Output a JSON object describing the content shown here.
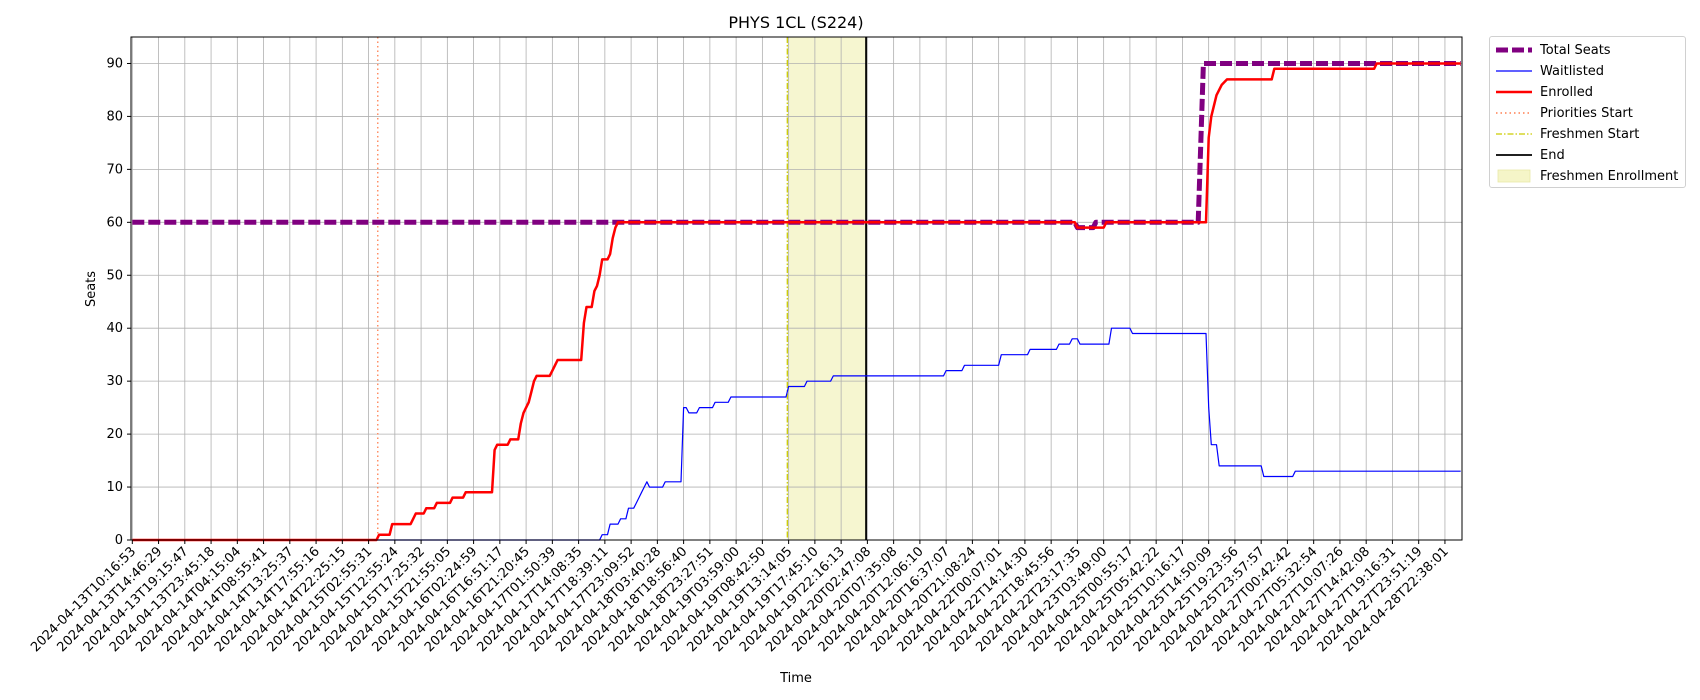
{
  "chart_data": {
    "type": "line",
    "title": "PHYS 1CL (S224)",
    "xlabel": "Time",
    "ylabel": "Seats",
    "ylim": [
      0,
      95
    ],
    "yticks": [
      0,
      10,
      20,
      30,
      40,
      50,
      60,
      70,
      80,
      90
    ],
    "grid": true,
    "legend_placement": "outside top-right",
    "x_ticks": [
      "2024-04-13T10:16:53",
      "2024-04-13T14:46:29",
      "2024-04-13T19:15:47",
      "2024-04-13T23:45:18",
      "2024-04-14T04:15:04",
      "2024-04-14T08:55:41",
      "2024-04-14T13:25:37",
      "2024-04-14T17:55:16",
      "2024-04-14T22:25:15",
      "2024-04-15T02:55:31",
      "2024-04-15T12:55:24",
      "2024-04-15T17:25:32",
      "2024-04-15T21:55:05",
      "2024-04-16T02:24:59",
      "2024-04-16T16:51:17",
      "2024-04-16T21:20:45",
      "2024-04-17T01:50:39",
      "2024-04-17T14:08:35",
      "2024-04-17T18:39:11",
      "2024-04-17T23:09:52",
      "2024-04-18T03:40:28",
      "2024-04-18T18:56:40",
      "2024-04-18T23:27:51",
      "2024-04-19T03:59:00",
      "2024-04-19T08:42:50",
      "2024-04-19T13:14:05",
      "2024-04-19T17:45:10",
      "2024-04-19T22:16:13",
      "2024-04-20T02:47:08",
      "2024-04-20T07:35:08",
      "2024-04-20T12:06:10",
      "2024-04-20T16:37:07",
      "2024-04-20T21:08:24",
      "2024-04-22T00:07:01",
      "2024-04-22T14:14:30",
      "2024-04-22T18:45:56",
      "2024-04-22T23:17:35",
      "2024-04-23T03:49:00",
      "2024-04-25T00:55:17",
      "2024-04-25T05:42:22",
      "2024-04-25T10:16:17",
      "2024-04-25T14:50:09",
      "2024-04-25T19:23:56",
      "2024-04-25T23:57:57",
      "2024-04-27T00:42:42",
      "2024-04-27T05:32:54",
      "2024-04-27T10:07:26",
      "2024-04-27T14:42:08",
      "2024-04-27T19:16:31",
      "2024-04-27T23:51:19",
      "2024-04-28T22:38:01"
    ],
    "x_range_ticks": [
      -0.05,
      50.65
    ],
    "series": [
      {
        "name": "Total Seats",
        "color": "#800080",
        "style": "dashed",
        "points": [
          [
            0,
            60
          ],
          [
            35.9,
            60
          ],
          [
            36.0,
            59
          ],
          [
            36.6,
            59
          ],
          [
            36.7,
            60
          ],
          [
            40.6,
            60
          ],
          [
            40.8,
            90
          ],
          [
            50.6,
            90
          ]
        ]
      },
      {
        "name": "Waitlisted",
        "color": "#0000ff",
        "style": "solid",
        "points": [
          [
            0,
            0
          ],
          [
            17.8,
            0
          ],
          [
            17.9,
            1
          ],
          [
            18.1,
            1
          ],
          [
            18.2,
            3
          ],
          [
            18.5,
            3
          ],
          [
            18.6,
            4
          ],
          [
            18.8,
            4
          ],
          [
            18.9,
            6
          ],
          [
            19.1,
            6
          ],
          [
            19.2,
            7
          ],
          [
            19.3,
            8
          ],
          [
            19.4,
            9
          ],
          [
            19.5,
            10
          ],
          [
            19.6,
            11
          ],
          [
            19.7,
            10
          ],
          [
            20.2,
            10
          ],
          [
            20.3,
            11
          ],
          [
            20.9,
            11
          ],
          [
            21.0,
            25
          ],
          [
            21.1,
            25
          ],
          [
            21.2,
            24
          ],
          [
            21.5,
            24
          ],
          [
            21.6,
            25
          ],
          [
            22.1,
            25
          ],
          [
            22.2,
            26
          ],
          [
            22.7,
            26
          ],
          [
            22.8,
            27
          ],
          [
            24.9,
            27
          ],
          [
            25.0,
            29
          ],
          [
            25.6,
            29
          ],
          [
            25.7,
            30
          ],
          [
            26.6,
            30
          ],
          [
            26.7,
            31
          ],
          [
            30.9,
            31
          ],
          [
            31.0,
            32
          ],
          [
            31.6,
            32
          ],
          [
            31.7,
            33
          ],
          [
            33.0,
            33
          ],
          [
            33.1,
            35
          ],
          [
            34.1,
            35
          ],
          [
            34.2,
            36
          ],
          [
            35.2,
            36
          ],
          [
            35.3,
            37
          ],
          [
            35.7,
            37
          ],
          [
            35.8,
            38
          ],
          [
            36.0,
            38
          ],
          [
            36.1,
            37
          ],
          [
            37.2,
            37
          ],
          [
            37.3,
            40
          ],
          [
            38.0,
            40
          ],
          [
            38.1,
            39
          ],
          [
            40.9,
            39
          ],
          [
            41.0,
            25
          ],
          [
            41.1,
            18
          ],
          [
            41.3,
            18
          ],
          [
            41.4,
            14
          ],
          [
            43.0,
            14
          ],
          [
            43.1,
            12
          ],
          [
            44.2,
            12
          ],
          [
            44.3,
            13
          ],
          [
            50.6,
            13
          ]
        ]
      },
      {
        "name": "Enrolled",
        "color": "#ff0000",
        "style": "solid",
        "points": [
          [
            0,
            0
          ],
          [
            9.3,
            0
          ],
          [
            9.4,
            1
          ],
          [
            9.8,
            1
          ],
          [
            9.9,
            3
          ],
          [
            10.6,
            3
          ],
          [
            10.7,
            4
          ],
          [
            10.8,
            5
          ],
          [
            11.1,
            5
          ],
          [
            11.2,
            6
          ],
          [
            11.5,
            6
          ],
          [
            11.6,
            7
          ],
          [
            12.1,
            7
          ],
          [
            12.2,
            8
          ],
          [
            12.6,
            8
          ],
          [
            12.7,
            9
          ],
          [
            13.7,
            9
          ],
          [
            13.8,
            17
          ],
          [
            13.9,
            18
          ],
          [
            14.3,
            18
          ],
          [
            14.4,
            19
          ],
          [
            14.7,
            19
          ],
          [
            14.8,
            22
          ],
          [
            14.9,
            24
          ],
          [
            15.0,
            25
          ],
          [
            15.1,
            26
          ],
          [
            15.2,
            28
          ],
          [
            15.3,
            30
          ],
          [
            15.4,
            31
          ],
          [
            15.9,
            31
          ],
          [
            16.0,
            32
          ],
          [
            16.1,
            33
          ],
          [
            16.2,
            34
          ],
          [
            17.1,
            34
          ],
          [
            17.2,
            41
          ],
          [
            17.3,
            44
          ],
          [
            17.5,
            44
          ],
          [
            17.6,
            47
          ],
          [
            17.7,
            48
          ],
          [
            17.8,
            50
          ],
          [
            17.9,
            53
          ],
          [
            18.1,
            53
          ],
          [
            18.2,
            54
          ],
          [
            18.3,
            57
          ],
          [
            18.4,
            59
          ],
          [
            18.5,
            60
          ],
          [
            35.9,
            60
          ],
          [
            36.0,
            59
          ],
          [
            37.0,
            59
          ],
          [
            37.1,
            60
          ],
          [
            40.9,
            60
          ],
          [
            41.0,
            76
          ],
          [
            41.1,
            80
          ],
          [
            41.3,
            84
          ],
          [
            41.5,
            86
          ],
          [
            41.7,
            87
          ],
          [
            43.4,
            87
          ],
          [
            43.5,
            89
          ],
          [
            47.3,
            89
          ],
          [
            47.4,
            90
          ],
          [
            50.6,
            90
          ]
        ]
      }
    ],
    "vlines": [
      {
        "name": "Priorities Start",
        "x": 9.35,
        "color": "#ff7f50",
        "style": "dotted"
      },
      {
        "name": "Freshmen Start",
        "x": 24.95,
        "color": "#cccc00",
        "style": "dashdot"
      },
      {
        "name": "End",
        "x": 27.95,
        "color": "#000000",
        "style": "solid"
      }
    ],
    "spans": [
      {
        "name": "Freshmen Enrollment",
        "x0": 24.95,
        "x1": 27.95,
        "color": "#f5f5c8"
      }
    ]
  }
}
